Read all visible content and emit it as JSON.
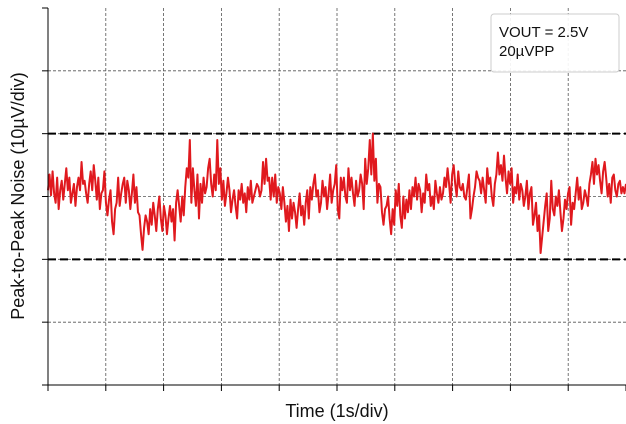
{
  "chart_data": {
    "type": "line",
    "xlabel": "Time (1s/div)",
    "ylabel": "Peak-to-Peak Noise (10µV/div)",
    "xlim": [
      0,
      10
    ],
    "ylim": [
      -3,
      3
    ],
    "x_divisions": 10,
    "y_divisions": 6,
    "grid": true,
    "legend_position": "top-right",
    "annotation": [
      "VOUT = 2.5V",
      "20µVPP"
    ],
    "reference_lines": [
      1,
      -1
    ],
    "colors": {
      "trace": "#e0191e",
      "grid": "#555555",
      "reference": "#000000"
    },
    "series": [
      {
        "values": [
          0.1,
          0.35,
          0.02,
          0.4,
          0.05,
          -0.1,
          0.3,
          -0.2,
          0.1,
          0.25,
          -0.05,
          0.2,
          0.45,
          0.1,
          0.3,
          -0.1,
          0.05,
          0.2,
          -0.15,
          0.15,
          0.3,
          0.1,
          0.55,
          0.2,
          0.25,
          0.05,
          -0.1,
          0.2,
          0.4,
          0.1,
          0.5,
          0.25,
          -0.05,
          0.3,
          -0.2,
          0.05,
          0.1,
          0.4,
          -0.1,
          -0.3,
          -0.05,
          0.1,
          -0.4,
          -0.6,
          -0.2,
          -0.1,
          0.3,
          -0.15,
          0.05,
          0.2,
          0.3,
          -0.1,
          0.25,
          0.1,
          -0.2,
          0.05,
          0.35,
          -0.1,
          0.15,
          -0.25,
          -0.3,
          -0.6,
          -0.85,
          -0.5,
          -0.3,
          -0.4,
          -0.6,
          -0.2,
          -0.45,
          -0.1,
          -0.3,
          -0.55,
          -0.2,
          0.0,
          -0.35,
          -0.55,
          -0.15,
          -0.3,
          -0.6,
          -0.35,
          -0.15,
          -0.4,
          -0.2,
          -0.7,
          -0.1,
          0.1,
          -0.15,
          -0.4,
          0.0,
          -0.3,
          0.15,
          0.45,
          0.3,
          0.9,
          -0.1,
          0.45,
          0.1,
          -0.15,
          0.35,
          -0.35,
          0.2,
          -0.1,
          0.3,
          0.05,
          0.15,
          0.45,
          0.6,
          0.2,
          0.0,
          0.35,
          0.1,
          0.9,
          0.2,
          0.45,
          -0.05,
          0.25,
          -0.15,
          0.05,
          0.3,
          0.1,
          -0.25,
          -0.05,
          0.1,
          -0.15,
          -0.35,
          0.1,
          -0.05,
          0.2,
          -0.1,
          0.05,
          -0.25,
          0.15,
          -0.05,
          0.25,
          -0.1,
          0.0,
          0.1,
          0.2,
          0.15,
          0.0,
          0.1,
          0.55,
          0.2,
          0.6,
          0.25,
          0.3,
          -0.05,
          0.3,
          0.0,
          0.35,
          -0.1,
          0.15,
          0.05,
          -0.2,
          0.15,
          -0.1,
          -0.4,
          -0.15,
          -0.55,
          -0.05,
          -0.35,
          -0.1,
          -0.25,
          -0.5,
          -0.2,
          0.05,
          -0.3,
          -0.15,
          -0.45,
          -0.1,
          0.1,
          -0.35,
          0.15,
          -0.05,
          0.2,
          0.35,
          0.0,
          0.1,
          -0.25,
          -0.1,
          0.25,
          0.0,
          0.15,
          -0.2,
          0.05,
          0.35,
          -0.1,
          0.1,
          0.2,
          0.5,
          -0.2,
          -0.35,
          0.3,
          0.1,
          0.3,
          0.0,
          -0.1,
          0.45,
          0.1,
          0.3,
          0.05,
          -0.15,
          0.25,
          0.0,
          0.1,
          0.35,
          0.2,
          -0.2,
          0.6,
          0.2,
          0.45,
          0.9,
          0.35,
          1.0,
          0.25,
          0.6,
          -0.1,
          0.2,
          0.15,
          -0.25,
          -0.45,
          -0.2,
          -0.15,
          0.0,
          -0.35,
          -0.6,
          -0.2,
          -0.45,
          0.1,
          -0.15,
          0.2,
          -0.3,
          -0.5,
          0.0,
          -0.35,
          -0.05,
          -0.25,
          0.1,
          -0.2,
          0.15,
          0.0,
          0.3,
          -0.05,
          0.2,
          0.1,
          -0.25,
          0.05,
          -0.1,
          0.35,
          0.1,
          0.2,
          -0.15,
          0.0,
          -0.2,
          0.25,
          0.05,
          -0.1,
          0.15,
          -0.05,
          0.05,
          0.3,
          0.15,
          0.45,
          0.2,
          -0.1,
          0.35,
          0.5,
          0.2,
          0.0,
          0.4,
          0.15,
          0.1,
          0.2,
          0.0,
          -0.05,
          0.15,
          0.35,
          -0.35,
          -0.2,
          0.0,
          0.15,
          0.4,
          0.3,
          0.25,
          0.05,
          0.3,
          0.1,
          -0.1,
          0.45,
          0.2,
          0.3,
          0.0,
          -0.15,
          0.2,
          0.35,
          0.7,
          0.35,
          0.5,
          0.25,
          0.65,
          0.3,
          0.05,
          0.4,
          0.2,
          0.45,
          -0.1,
          0.15,
          0.05,
          0.35,
          -0.05,
          0.2,
          0.1,
          -0.15,
          0.0,
          0.25,
          -0.2,
          0.05,
          0.15,
          -0.45,
          -0.3,
          -0.1,
          -0.55,
          -0.3,
          -0.9,
          -0.65,
          -0.4,
          -0.15,
          0.05,
          -0.55,
          -0.35,
          0.25,
          -0.2,
          -0.3,
          0.0,
          -0.15,
          0.1,
          -0.25,
          -0.55,
          -0.35,
          -0.05,
          -0.2,
          0.05,
          0.15,
          -0.45,
          -0.1,
          -0.2,
          0.05,
          0.3,
          -0.05,
          0.15,
          -0.2,
          -0.1,
          0.1,
          0.0,
          -0.15,
          0.2,
          0.35,
          0.55,
          0.2,
          0.6,
          0.35,
          0.5,
          0.25,
          0.05,
          0.4,
          0.55,
          0.3,
          0.0,
          0.2,
          -0.1,
          0.3,
          0.35,
          0.1,
          0.0,
          0.2,
          0.25,
          0.05,
          0.15,
          0.05,
          0.2
        ]
      }
    ]
  }
}
